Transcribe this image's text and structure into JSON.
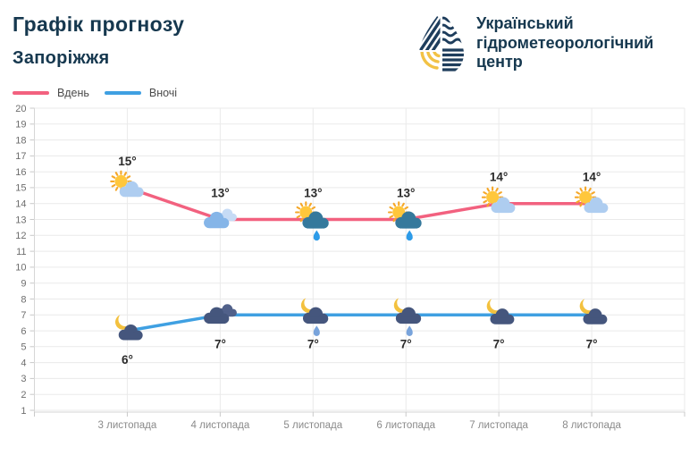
{
  "header": {
    "title": "Графік прогнозу",
    "subtitle": "Запоріжжя",
    "logo": {
      "icon": "uhmc-droplet-logo",
      "org_lines": [
        "Український",
        "гідрометеорологічний",
        "центр"
      ]
    }
  },
  "legend": {
    "items": [
      {
        "label": "Вдень",
        "color": "#F2617F"
      },
      {
        "label": "Вночі",
        "color": "#3FA0E2"
      }
    ]
  },
  "chart_data": {
    "type": "line",
    "title": "Графік прогнозу Запоріжжя",
    "categories": [
      "3 листопада",
      "4 листопада",
      "5 листопада",
      "6 листопада",
      "7 листопада",
      "8 листопада"
    ],
    "series": [
      {
        "name": "Вдень",
        "color": "#F2617F",
        "values": [
          15,
          13,
          13,
          13,
          14,
          14
        ],
        "point_labels": [
          "15°",
          "13°",
          "13°",
          "13°",
          "14°",
          "14°"
        ],
        "icons": [
          "sun-cloud",
          "clouds",
          "sun-cloud-rain",
          "sun-cloud-rain",
          "sun-cloud",
          "sun-cloud"
        ]
      },
      {
        "name": "Вночі",
        "color": "#3FA0E2",
        "values": [
          6,
          7,
          7,
          7,
          7,
          7
        ],
        "point_labels": [
          "6°",
          "7°",
          "7°",
          "7°",
          "7°",
          "7°"
        ],
        "icons": [
          "moon-cloud",
          "clouds-dark",
          "moon-cloud-rain",
          "moon-cloud-rain",
          "moon-cloud",
          "moon-cloud"
        ]
      }
    ],
    "ylim": [
      1,
      20
    ],
    "yticks": [
      1,
      2,
      3,
      4,
      5,
      6,
      7,
      8,
      9,
      10,
      11,
      12,
      13,
      14,
      15,
      16,
      17,
      18,
      19,
      20
    ],
    "grid": true,
    "legend_position": "top-left"
  },
  "colors": {
    "title": "#16384F",
    "grid_line": "#EAEAEA",
    "axis_line": "#D6D6D6",
    "tick": "#C9C9C9",
    "y_label": "#6E6E6E",
    "x_label": "#8A8A8A",
    "temp_label": "#2A2A2A",
    "sun_core": "#FFC73C",
    "sun_rays": "#F5A728",
    "moon": "#F3C13E",
    "cloud_light": "#AECDF0",
    "cloud_light_front": "#85B5E8",
    "cloud_light_back": "#C6DBF5",
    "cloud_rain_day": "#35799C",
    "cloud_dark": "#45567D",
    "cloud_dark_back": "#51618A",
    "drop_day": "#2D9BE8",
    "drop_night": "#78A3DB",
    "logo_navy": "#1E3D5C",
    "logo_yellow": "#F2C245"
  }
}
